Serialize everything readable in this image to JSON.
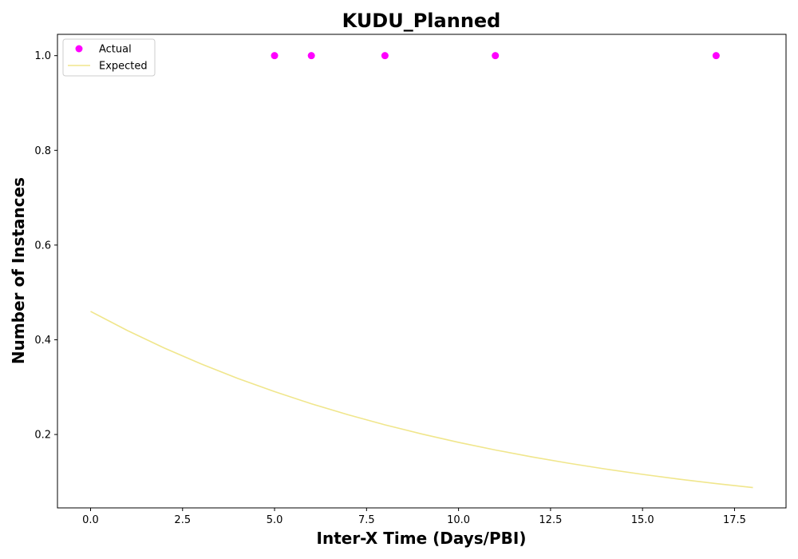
{
  "chart_data": {
    "type": "scatter",
    "title": "KUDU_Planned",
    "xlabel": "Inter-X Time (Days/PBI)",
    "ylabel": "Number of Instances",
    "xlim": [
      -0.9,
      18.9
    ],
    "ylim": [
      0.045,
      1.045
    ],
    "x_ticks": [
      0.0,
      2.5,
      5.0,
      7.5,
      10.0,
      12.5,
      15.0,
      17.5
    ],
    "x_tick_labels": [
      "0.0",
      "2.5",
      "5.0",
      "7.5",
      "10.0",
      "12.5",
      "15.0",
      "17.5"
    ],
    "y_ticks": [
      0.2,
      0.4,
      0.6,
      0.8,
      1.0
    ],
    "y_tick_labels": [
      "0.2",
      "0.4",
      "0.6",
      "0.8",
      "1.0"
    ],
    "grid": false,
    "legend_position": "top-left",
    "series": [
      {
        "name": "Actual",
        "kind": "scatter",
        "color": "#ff00ff",
        "x": [
          5,
          6,
          8,
          11,
          17
        ],
        "y": [
          1.0,
          1.0,
          1.0,
          1.0,
          1.0
        ]
      },
      {
        "name": "Expected",
        "kind": "line",
        "color": "#f0e68c",
        "x": [
          0,
          1,
          2,
          3,
          4,
          5,
          6,
          7,
          8,
          9,
          10,
          11,
          12,
          13,
          14,
          15,
          16,
          17,
          18
        ],
        "y": [
          0.46,
          0.4196,
          0.3827,
          0.3491,
          0.3184,
          0.2905,
          0.2649,
          0.2417,
          0.2204,
          0.2011,
          0.1834,
          0.1673,
          0.1526,
          0.1392,
          0.127,
          0.1158,
          0.1056,
          0.0964,
          0.0879
        ]
      }
    ]
  }
}
